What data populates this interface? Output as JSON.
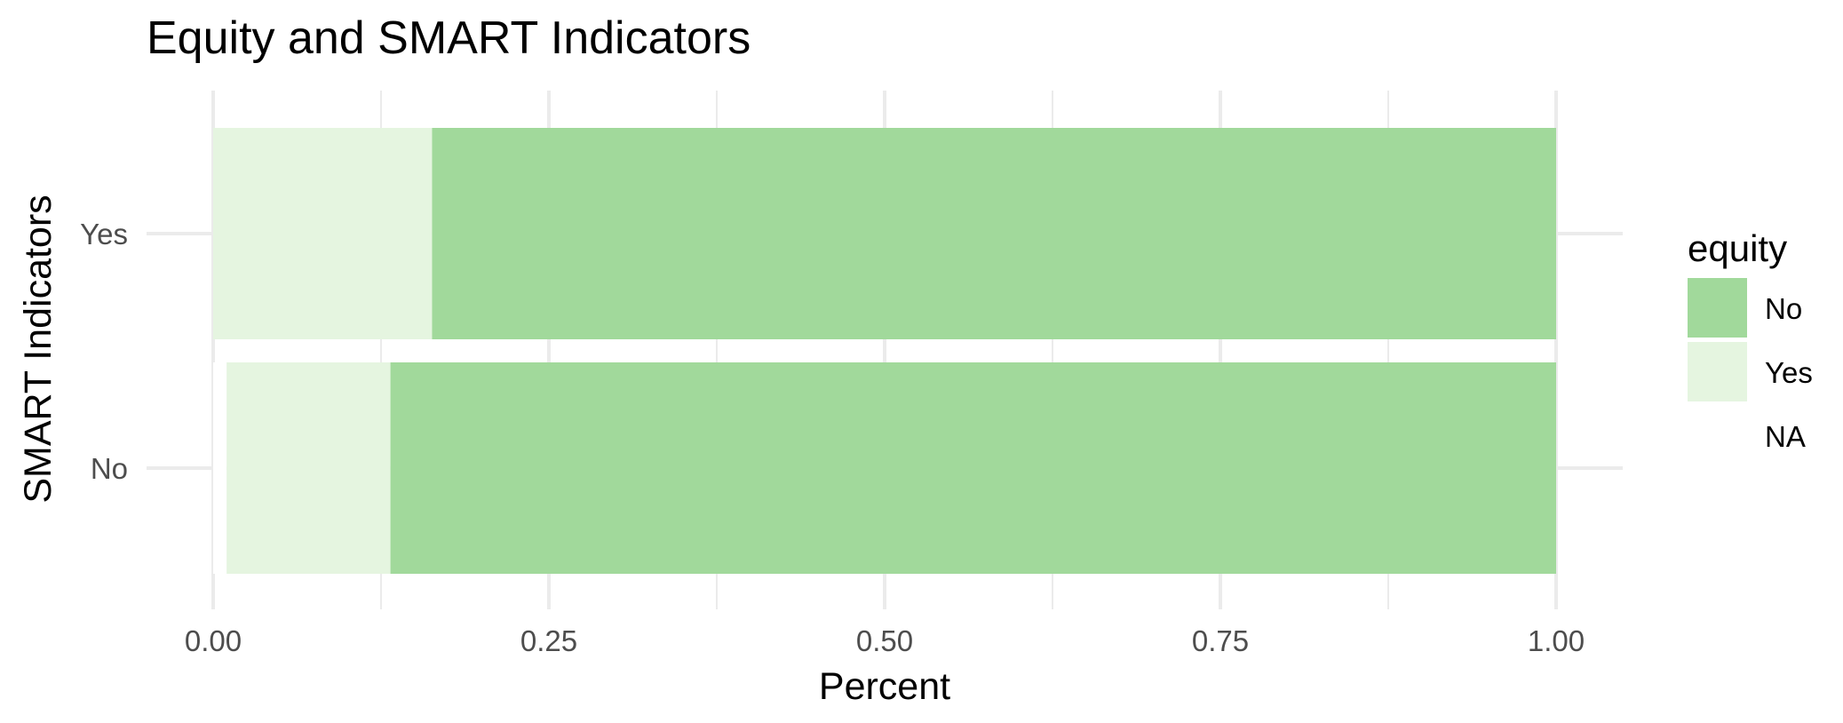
{
  "chart_data": {
    "type": "bar",
    "orientation": "horizontal",
    "stacking": "fill",
    "title": "Equity and SMART Indicators",
    "xlabel": "Percent",
    "ylabel": "SMART Indicators",
    "xlim": [
      0,
      1
    ],
    "x_ticks": [
      "0.00",
      "0.25",
      "0.50",
      "0.75",
      "1.00"
    ],
    "categories": [
      "Yes",
      "No"
    ],
    "series": [
      {
        "name": "NA",
        "values": [
          0.0,
          0.01
        ],
        "color": "#ffffff"
      },
      {
        "name": "Yes",
        "values": [
          0.163,
          0.122
        ],
        "color": "#e5f5e0"
      },
      {
        "name": "No",
        "values": [
          0.837,
          0.868
        ],
        "color": "#a1d99b"
      }
    ],
    "legend": {
      "title": "equity",
      "position": "right",
      "items": [
        {
          "label": "No",
          "color": "#a1d99b"
        },
        {
          "label": "Yes",
          "color": "#e5f5e0"
        },
        {
          "label": "NA",
          "color": "#ffffff"
        }
      ]
    },
    "grid": true
  }
}
